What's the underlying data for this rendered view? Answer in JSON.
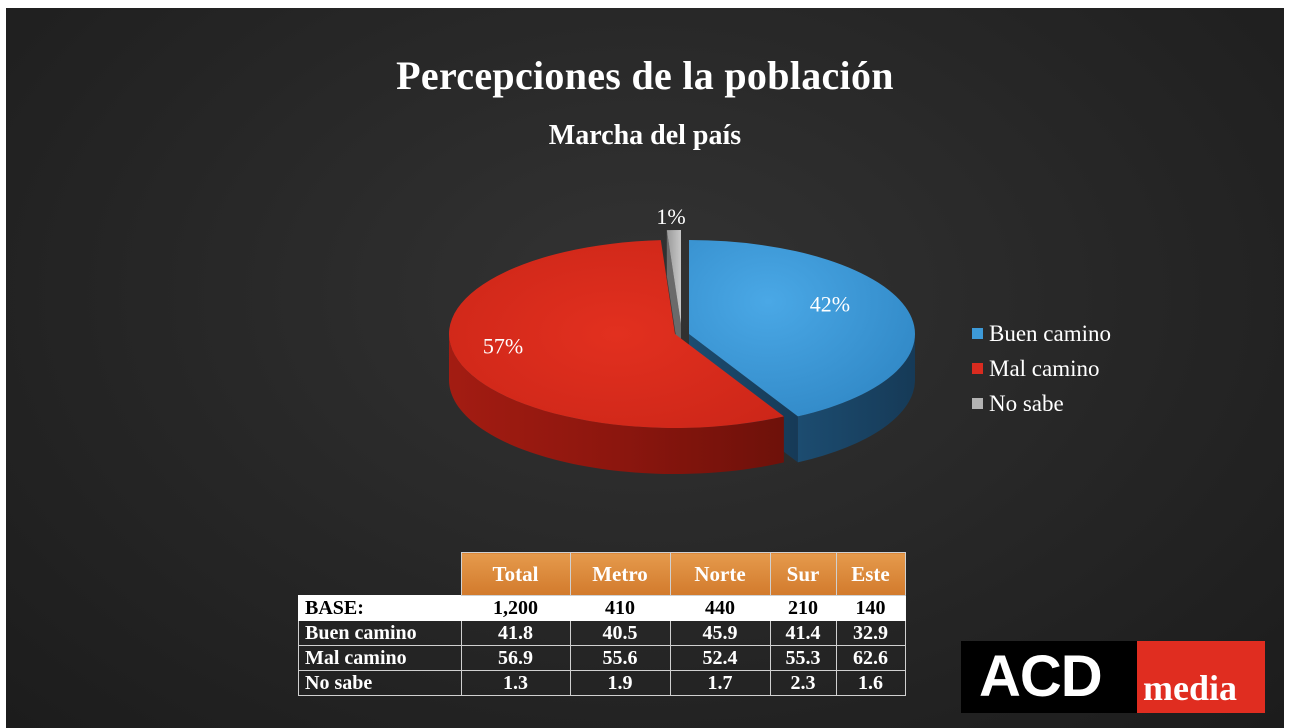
{
  "title": "Percepciones de la población",
  "subtitle": "Marcha del país",
  "chart_data": {
    "type": "pie",
    "categories": [
      "Buen camino",
      "Mal camino",
      "No sabe"
    ],
    "values": [
      42,
      57,
      1
    ],
    "data_labels": [
      "42%",
      "57%",
      "1%"
    ],
    "colors": [
      "#3d9ad8",
      "#d92b1f",
      "#b3b3b3"
    ],
    "legend_position": "right"
  },
  "table": {
    "headers": [
      "Total",
      "Metro",
      "Norte",
      "Sur",
      "Este"
    ],
    "rows": [
      {
        "label": "BASE:",
        "values": [
          "1,200",
          "410",
          "440",
          "210",
          "140"
        ]
      },
      {
        "label": "Buen camino",
        "values": [
          "41.8",
          "40.5",
          "45.9",
          "41.4",
          "32.9"
        ]
      },
      {
        "label": "Mal camino",
        "values": [
          "56.9",
          "55.6",
          "52.4",
          "55.3",
          "62.6"
        ]
      },
      {
        "label": "No sabe",
        "values": [
          "1.3",
          "1.9",
          "1.7",
          "2.3",
          "1.6"
        ]
      }
    ]
  },
  "logo": {
    "main": "ACD",
    "accent": "media"
  }
}
